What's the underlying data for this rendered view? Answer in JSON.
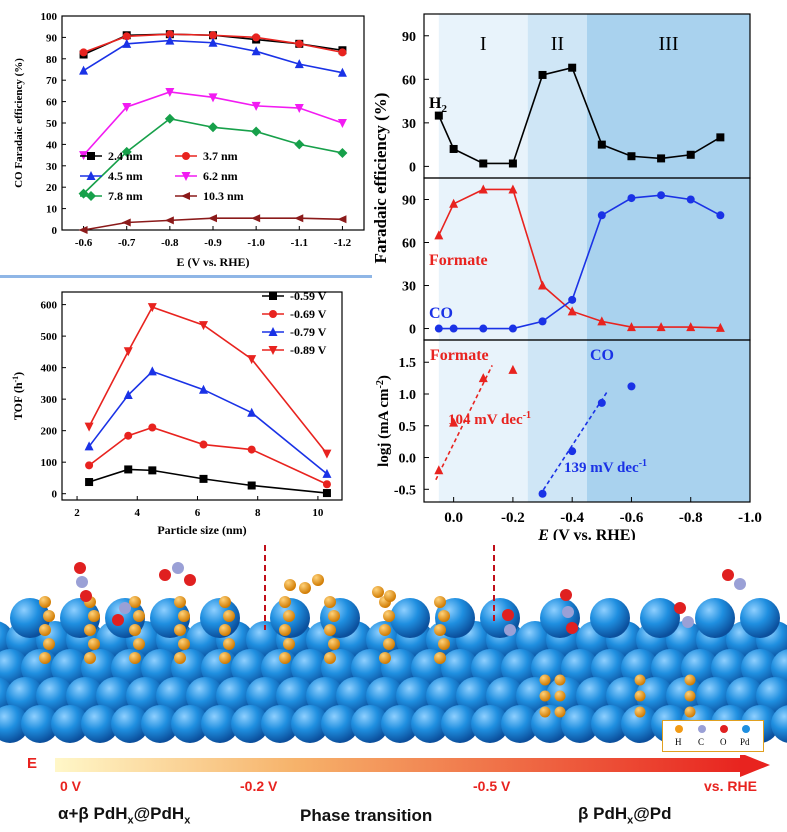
{
  "chart_data": [
    {
      "id": "co-fe",
      "type": "line",
      "ylabel": "CO Faradaic efficiency (%)",
      "xlabel": "E (V vs. RHE)",
      "x": [
        -0.6,
        -0.7,
        -0.8,
        -0.9,
        -1.0,
        -1.1,
        -1.2
      ],
      "xticks": [
        "-0.6",
        "-0.7",
        "-0.8",
        "-0.9",
        "-1.0",
        "-1.1",
        "-1.2"
      ],
      "yticks": [
        "0",
        "10",
        "20",
        "30",
        "40",
        "50",
        "60",
        "70",
        "80",
        "90",
        "100"
      ],
      "xlim": [
        -0.55,
        -1.25
      ],
      "ylim": [
        0,
        100
      ],
      "series": [
        {
          "name": "2.4 nm",
          "color": "#000000",
          "marker": "square",
          "values": [
            82,
            91,
            91.5,
            91,
            89,
            87,
            84
          ]
        },
        {
          "name": "3.7 nm",
          "color": "#e8231f",
          "marker": "circle",
          "values": [
            83,
            90.5,
            91.5,
            91,
            90,
            87,
            83
          ]
        },
        {
          "name": "4.5 nm",
          "color": "#1a32e6",
          "marker": "triangle-up",
          "values": [
            74.5,
            87,
            88.5,
            87.5,
            83.5,
            77.5,
            73.5
          ]
        },
        {
          "name": "6.2 nm",
          "color": "#f21bf2",
          "marker": "triangle-down",
          "values": [
            35,
            57.5,
            64.5,
            62,
            58,
            57,
            50
          ]
        },
        {
          "name": "7.8 nm",
          "color": "#17a04a",
          "marker": "diamond",
          "values": [
            17,
            36.5,
            52,
            48,
            46,
            40,
            36
          ]
        },
        {
          "name": "10.3 nm",
          "color": "#8b1a1a",
          "marker": "triangle-left",
          "values": [
            0,
            3.5,
            4.5,
            5.5,
            5.5,
            5.5,
            5
          ]
        }
      ]
    },
    {
      "id": "tof",
      "type": "line",
      "ylabel": "TOF (h",
      "ylabel_sup": "-1",
      "ylabel_tail": ")",
      "xlabel": "Particle size (nm)",
      "x": [
        2.4,
        3.7,
        4.5,
        6.2,
        7.8,
        10.3
      ],
      "xticks": [
        "2",
        "4",
        "6",
        "8",
        "10"
      ],
      "xtick_values": [
        2,
        4,
        6,
        8,
        10
      ],
      "yticks": [
        "0",
        "100",
        "200",
        "300",
        "400",
        "500",
        "600"
      ],
      "ytick_values": [
        0,
        100,
        200,
        300,
        400,
        500,
        600
      ],
      "xlim": [
        1.5,
        10.8
      ],
      "ylim": [
        -20,
        640
      ],
      "series": [
        {
          "name": "-0.59 V",
          "color": "#000000",
          "marker": "square",
          "values": [
            37,
            77,
            74,
            47,
            26,
            2
          ]
        },
        {
          "name": "-0.69 V",
          "color": "#e8231f",
          "marker": "circle",
          "values": [
            90,
            184,
            210,
            156,
            140,
            30
          ]
        },
        {
          "name": "-0.79 V",
          "color": "#1a32e6",
          "marker": "triangle-up",
          "values": [
            150,
            313,
            388,
            330,
            257,
            63
          ]
        },
        {
          "name": "-0.89 V",
          "color": "#e8231f",
          "marker": "triangle-down",
          "values": [
            213,
            452,
            592,
            535,
            427,
            127
          ]
        }
      ]
    },
    {
      "id": "fe-h2",
      "type": "line",
      "ylabel": "Faradaic efficiency (%)",
      "regions": [
        "I",
        "II",
        "III"
      ],
      "region_bounds": [
        [
          0.05,
          -0.25
        ],
        [
          -0.25,
          -0.45
        ],
        [
          -0.45,
          -1.0
        ]
      ],
      "region_colors": [
        "#e8f3fb",
        "#cfe6f6",
        "#a9d2ee"
      ],
      "x": [
        0.05,
        0.0,
        -0.1,
        -0.2,
        -0.3,
        -0.4,
        -0.5,
        -0.6,
        -0.7,
        -0.8,
        -0.9
      ],
      "yticks": [
        "0",
        "30",
        "60",
        "90"
      ],
      "ylim": [
        -8,
        105
      ],
      "xlim": [
        0.1,
        -1.0
      ],
      "series": [
        {
          "name": "H2",
          "label": "H",
          "label_sub": "2",
          "color": "#000000",
          "marker": "square",
          "values": [
            35,
            12,
            2,
            2,
            63,
            68,
            15,
            7,
            5.5,
            8,
            20
          ]
        }
      ]
    },
    {
      "id": "fe-formate-co",
      "type": "line",
      "yticks": [
        "0",
        "30",
        "60",
        "90"
      ],
      "ylim": [
        -8,
        105
      ],
      "xlim": [
        0.1,
        -1.0
      ],
      "x": [
        0.05,
        0.0,
        -0.1,
        -0.2,
        -0.3,
        -0.4,
        -0.5,
        -0.6,
        -0.7,
        -0.8,
        -0.9
      ],
      "series": [
        {
          "name": "Formate",
          "color": "#e8231f",
          "marker": "triangle-up",
          "values": [
            65,
            87,
            97,
            97,
            30,
            12,
            5,
            1,
            1,
            1,
            0.5
          ]
        },
        {
          "name": "CO",
          "color": "#1a32e6",
          "marker": "circle",
          "values": [
            0,
            0,
            0,
            0,
            5,
            20,
            79,
            91,
            93,
            90,
            79
          ]
        }
      ]
    },
    {
      "id": "tafel",
      "type": "scatter",
      "ylabel": "logj  (mA cm",
      "ylabel_sup": "-2",
      "ylabel_tail": ")",
      "xlabel_prefix": "E",
      "xlabel": " (V vs. RHE)",
      "xticks": [
        "0.0",
        "-0.2",
        "-0.4",
        "-0.6",
        "-0.8",
        "-1.0"
      ],
      "xtick_values": [
        0.0,
        -0.2,
        -0.4,
        -0.6,
        -0.8,
        -1.0
      ],
      "yticks": [
        "-0.5",
        "0.0",
        "0.5",
        "1.0",
        "1.5"
      ],
      "ytick_values": [
        -0.5,
        0.0,
        0.5,
        1.0,
        1.5
      ],
      "xlim": [
        0.1,
        -1.0
      ],
      "ylim": [
        -0.7,
        1.85
      ],
      "series": [
        {
          "name": "Formate",
          "color": "#e8231f",
          "marker": "triangle-up",
          "x": [
            0.05,
            0.0,
            -0.1,
            -0.2
          ],
          "values": [
            -0.2,
            0.55,
            1.25,
            1.38
          ],
          "fit": [
            [
              0.06,
              -0.35
            ],
            [
              -0.13,
              1.45
            ]
          ]
        },
        {
          "name": "CO",
          "color": "#1a32e6",
          "marker": "circle",
          "x": [
            -0.3,
            -0.4,
            -0.5,
            -0.6
          ],
          "values": [
            -0.57,
            0.1,
            0.86,
            1.12
          ],
          "fit": [
            [
              -0.29,
              -0.6
            ],
            [
              -0.52,
              1.05
            ]
          ]
        }
      ],
      "annotations": [
        {
          "text": "104 mV dec",
          "sup": "-1",
          "color": "#e8231f"
        },
        {
          "text": "139 mV dec",
          "sup": "-1",
          "color": "#1a32e6"
        }
      ]
    }
  ],
  "scene": {
    "legend": [
      {
        "label": "H",
        "color": "#f29a14"
      },
      {
        "label": "C",
        "color": "#9aa0d6"
      },
      {
        "label": "O",
        "color": "#e02020"
      },
      {
        "label": "Pd",
        "color": "#1f8fe0"
      }
    ]
  },
  "bottom": {
    "axis_letter": "E",
    "ticks": [
      "0 V",
      "-0.2 V",
      "-0.5 V",
      "vs. RHE"
    ],
    "phases": [
      "α+β PdH",
      "x",
      "@PdH",
      "x",
      "Phase transition",
      "β PdH",
      "x",
      "@Pd"
    ]
  }
}
